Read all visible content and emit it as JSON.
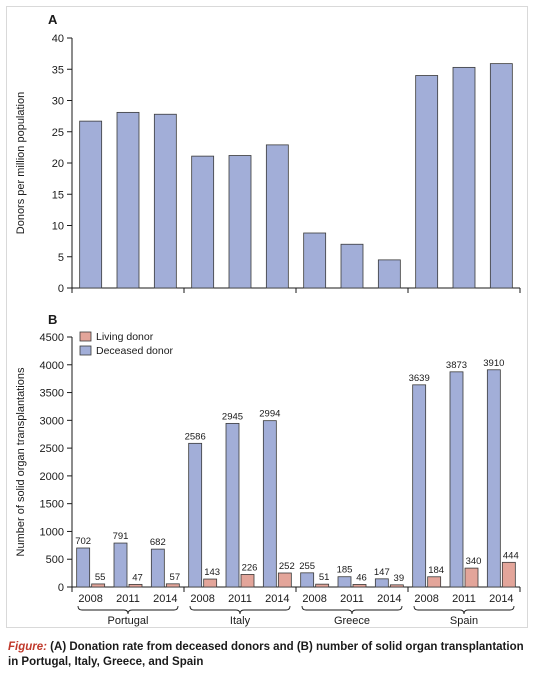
{
  "chart_data": [
    {
      "type": "bar",
      "panel_label": "A",
      "ylabel": "Donors per million population",
      "ylim": [
        0,
        40
      ],
      "yticks": [
        0,
        5,
        10,
        15,
        20,
        25,
        30,
        35,
        40
      ],
      "groups": [
        "Portugal",
        "Italy",
        "Greece",
        "Spain"
      ],
      "categories": [
        "2008",
        "2011",
        "2014"
      ],
      "series": [
        {
          "values": [
            [
              26.7,
              28.1,
              27.8
            ],
            [
              21.1,
              21.2,
              22.9
            ],
            [
              8.8,
              7.0,
              4.5
            ],
            [
              34.0,
              35.3,
              35.9
            ]
          ],
          "color": "#a2aed8"
        }
      ]
    },
    {
      "type": "bar",
      "panel_label": "B",
      "ylabel": "Number of solid organ transplantations",
      "ylim": [
        0,
        4500
      ],
      "yticks": [
        0,
        500,
        1000,
        1500,
        2000,
        2500,
        3000,
        3500,
        4000,
        4500
      ],
      "groups": [
        "Portugal",
        "Italy",
        "Greece",
        "Spain"
      ],
      "categories": [
        "2008",
        "2011",
        "2014"
      ],
      "legend": {
        "placement": "top-left"
      },
      "series": [
        {
          "name": "Deceased donor",
          "color": "#a2aed8",
          "values": [
            [
              702,
              791,
              682
            ],
            [
              2586,
              2945,
              2994
            ],
            [
              255,
              185,
              147
            ],
            [
              3639,
              3873,
              3910
            ]
          ]
        },
        {
          "name": "Living donor",
          "color": "#e3a59a",
          "values": [
            [
              55,
              47,
              57
            ],
            [
              143,
              226,
              252
            ],
            [
              51,
              46,
              39
            ],
            [
              184,
              340,
              444
            ]
          ]
        }
      ]
    }
  ],
  "caption": {
    "lead": "Figure:",
    "text": " (A) Donation rate from deceased donors and (B) number of solid organ transplantation in Portugal, Italy, Greece, and Spain"
  }
}
